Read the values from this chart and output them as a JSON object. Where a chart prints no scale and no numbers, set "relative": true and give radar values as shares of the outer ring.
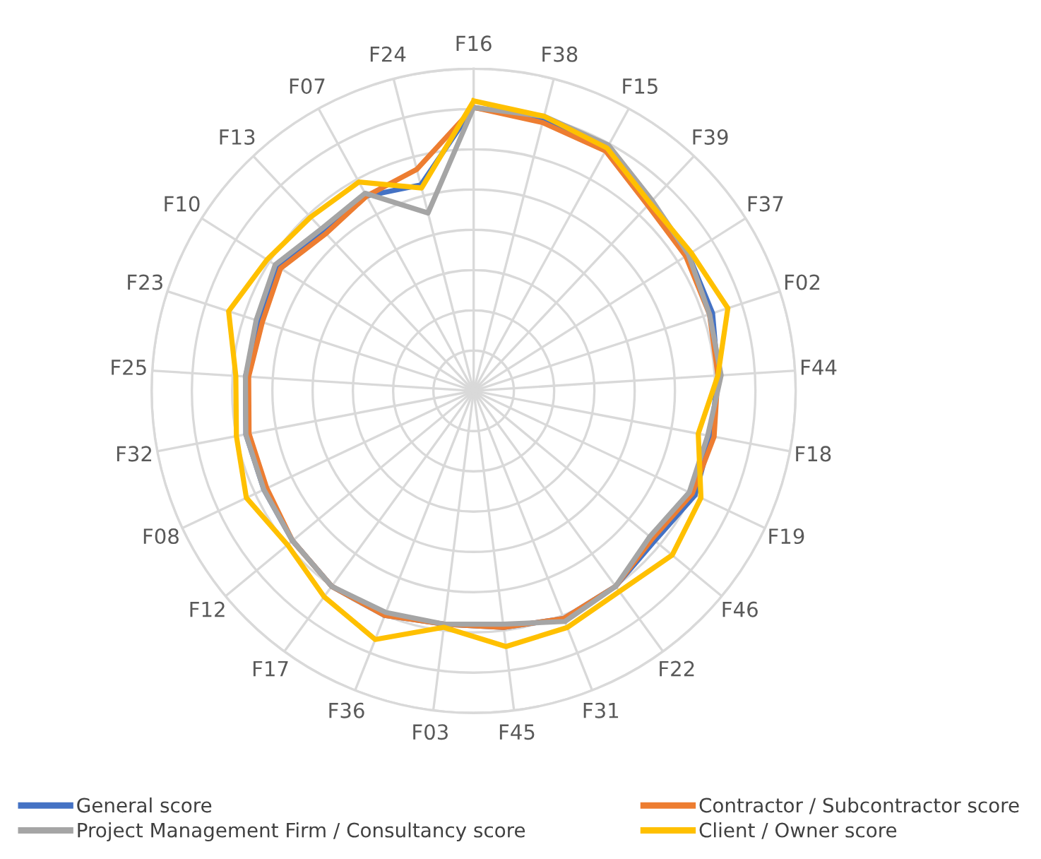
{
  "chart_data": {
    "type": "radar",
    "relative": true,
    "grid": "y",
    "legend": "bottom",
    "categories": [
      "F16",
      "F38",
      "F15",
      "F39",
      "F37",
      "F02",
      "F44",
      "F18",
      "F19",
      "F46",
      "F22",
      "F31",
      "F45",
      "F03",
      "F36",
      "F17",
      "F12",
      "F08",
      "F32",
      "F25",
      "F23",
      "F10",
      "F13",
      "F07",
      "F24"
    ],
    "series": [
      {
        "name": "General score",
        "color": "#4472c4",
        "values": [
          0.88,
          0.87,
          0.86,
          0.8,
          0.79,
          0.78,
          0.76,
          0.75,
          0.76,
          0.73,
          0.75,
          0.76,
          0.74,
          0.73,
          0.75,
          0.75,
          0.73,
          0.72,
          0.72,
          0.71,
          0.7,
          0.72,
          0.68,
          0.69,
          0.66
        ]
      },
      {
        "name": "Contractor / Subcontractor score",
        "color": "#ed7d31",
        "values": [
          0.88,
          0.86,
          0.85,
          0.79,
          0.78,
          0.77,
          0.76,
          0.76,
          0.75,
          0.72,
          0.75,
          0.76,
          0.74,
          0.73,
          0.75,
          0.75,
          0.73,
          0.71,
          0.71,
          0.7,
          0.69,
          0.71,
          0.67,
          0.69,
          0.71
        ]
      },
      {
        "name": "Project Management Firm / Consultancy score",
        "color": "#a5a5a5",
        "values": [
          0.88,
          0.88,
          0.87,
          0.81,
          0.79,
          0.77,
          0.77,
          0.74,
          0.74,
          0.71,
          0.75,
          0.77,
          0.73,
          0.73,
          0.74,
          0.75,
          0.73,
          0.72,
          0.72,
          0.71,
          0.71,
          0.73,
          0.69,
          0.7,
          0.57
        ]
      },
      {
        "name": "Client / Owner score",
        "color": "#ffc000",
        "values": [
          0.9,
          0.88,
          0.86,
          0.8,
          0.8,
          0.83,
          0.76,
          0.71,
          0.78,
          0.8,
          0.77,
          0.79,
          0.8,
          0.74,
          0.83,
          0.79,
          0.75,
          0.78,
          0.75,
          0.74,
          0.8,
          0.76,
          0.74,
          0.74,
          0.65
        ]
      }
    ]
  }
}
